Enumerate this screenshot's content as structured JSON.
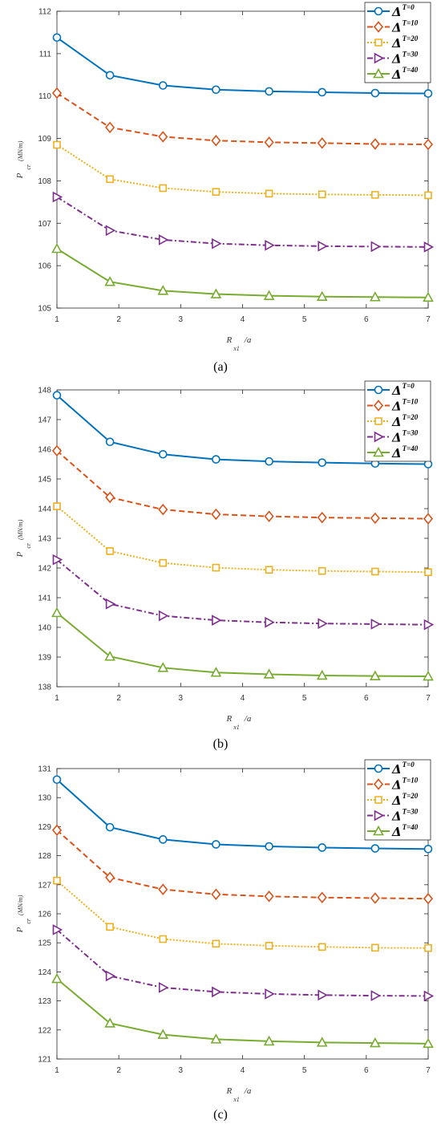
{
  "caption_labels": [
    "(a)",
    "(b)",
    "(c)"
  ],
  "legend_glyph": "Δ",
  "chart_data": [
    {
      "type": "line",
      "ylabel": "P",
      "ylabel_sub": "cr",
      "ylabel_unit": "(MN/m)",
      "xlabel": "R",
      "xlabel_sub": "x1",
      "xlabel_unit": "/a",
      "xlim": [
        1,
        7
      ],
      "ylim": [
        105,
        112
      ],
      "x_ticks": [
        1,
        2,
        3,
        4,
        5,
        6,
        7
      ],
      "y_ticks": [
        105,
        106,
        107,
        108,
        109,
        110,
        111,
        112
      ],
      "x": [
        1,
        1.857,
        2.714,
        3.571,
        4.429,
        5.286,
        6.143,
        7
      ],
      "legend_position": "top-right",
      "series": [
        {
          "name": "T=0",
          "color": "#0072BD",
          "marker": "circle",
          "dash": "",
          "values": [
            111.38,
            110.49,
            110.25,
            110.15,
            110.11,
            110.09,
            110.07,
            110.06
          ]
        },
        {
          "name": "T=10",
          "color": "#D95319",
          "marker": "diamond",
          "dash": "7,4",
          "values": [
            110.07,
            109.26,
            109.04,
            108.95,
            108.91,
            108.89,
            108.87,
            108.86
          ]
        },
        {
          "name": "T=20",
          "color": "#EDB120",
          "marker": "square",
          "dash": "2,2",
          "values": [
            108.85,
            108.04,
            107.83,
            107.74,
            107.7,
            107.68,
            107.67,
            107.66
          ]
        },
        {
          "name": "T=30",
          "color": "#7E2F8E",
          "marker": "triangle-right",
          "dash": "7,3,2,3",
          "values": [
            107.62,
            106.83,
            106.61,
            106.52,
            106.48,
            106.46,
            106.45,
            106.44
          ]
        },
        {
          "name": "T=40",
          "color": "#77AC30",
          "marker": "triangle-up",
          "dash": "",
          "values": [
            106.4,
            105.62,
            105.41,
            105.33,
            105.29,
            105.27,
            105.26,
            105.25
          ]
        }
      ]
    },
    {
      "type": "line",
      "ylabel": "P",
      "ylabel_sub": "cr",
      "ylabel_unit": "(MN/m)",
      "xlabel": "R",
      "xlabel_sub": "x1",
      "xlabel_unit": "/a",
      "xlim": [
        1,
        7
      ],
      "ylim": [
        138,
        148
      ],
      "x_ticks": [
        1,
        2,
        3,
        4,
        5,
        6,
        7
      ],
      "y_ticks": [
        138,
        139,
        140,
        141,
        142,
        143,
        144,
        145,
        146,
        147,
        148
      ],
      "x": [
        1,
        1.857,
        2.714,
        3.571,
        4.429,
        5.286,
        6.143,
        7
      ],
      "legend_position": "top-right",
      "series": [
        {
          "name": "T=0",
          "color": "#0072BD",
          "marker": "circle",
          "dash": "",
          "values": [
            147.82,
            146.25,
            145.83,
            145.66,
            145.59,
            145.55,
            145.52,
            145.5
          ]
        },
        {
          "name": "T=10",
          "color": "#D95319",
          "marker": "diamond",
          "dash": "7,4",
          "values": [
            145.95,
            144.38,
            143.97,
            143.81,
            143.74,
            143.7,
            143.68,
            143.66
          ]
        },
        {
          "name": "T=20",
          "color": "#EDB120",
          "marker": "square",
          "dash": "2,2",
          "values": [
            144.08,
            142.57,
            142.17,
            142.01,
            141.94,
            141.9,
            141.88,
            141.86
          ]
        },
        {
          "name": "T=30",
          "color": "#7E2F8E",
          "marker": "triangle-right",
          "dash": "7,3,2,3",
          "values": [
            142.28,
            140.79,
            140.39,
            140.24,
            140.17,
            140.13,
            140.11,
            140.09
          ]
        },
        {
          "name": "T=40",
          "color": "#77AC30",
          "marker": "triangle-up",
          "dash": "",
          "values": [
            140.49,
            139.02,
            138.64,
            138.48,
            138.42,
            138.38,
            138.36,
            138.35
          ]
        }
      ]
    },
    {
      "type": "line",
      "ylabel": "P",
      "ylabel_sub": "cr",
      "ylabel_unit": "(MN/m)",
      "xlabel": "R",
      "xlabel_sub": "x1",
      "xlabel_unit": "/a",
      "xlim": [
        1,
        7
      ],
      "ylim": [
        121,
        131
      ],
      "x_ticks": [
        1,
        2,
        3,
        4,
        5,
        6,
        7
      ],
      "y_ticks": [
        121,
        122,
        123,
        124,
        125,
        126,
        127,
        128,
        129,
        130,
        131
      ],
      "x": [
        1,
        1.857,
        2.714,
        3.571,
        4.429,
        5.286,
        6.143,
        7
      ],
      "legend_position": "top-right",
      "series": [
        {
          "name": "T=0",
          "color": "#0072BD",
          "marker": "circle",
          "dash": "",
          "values": [
            130.62,
            128.98,
            128.56,
            128.39,
            128.32,
            128.28,
            128.25,
            128.23
          ]
        },
        {
          "name": "T=10",
          "color": "#D95319",
          "marker": "diamond",
          "dash": "7,4",
          "values": [
            128.88,
            127.25,
            126.84,
            126.67,
            126.6,
            126.56,
            126.54,
            126.52
          ]
        },
        {
          "name": "T=20",
          "color": "#EDB120",
          "marker": "square",
          "dash": "2,2",
          "values": [
            127.14,
            125.55,
            125.13,
            124.97,
            124.9,
            124.86,
            124.83,
            124.82
          ]
        },
        {
          "name": "T=30",
          "color": "#7E2F8E",
          "marker": "triangle-right",
          "dash": "7,3,2,3",
          "values": [
            125.45,
            123.86,
            123.46,
            123.31,
            123.24,
            123.2,
            123.18,
            123.17
          ]
        },
        {
          "name": "T=40",
          "color": "#77AC30",
          "marker": "triangle-up",
          "dash": "",
          "values": [
            123.76,
            122.23,
            121.84,
            121.68,
            121.61,
            121.57,
            121.55,
            121.53
          ]
        }
      ]
    }
  ]
}
